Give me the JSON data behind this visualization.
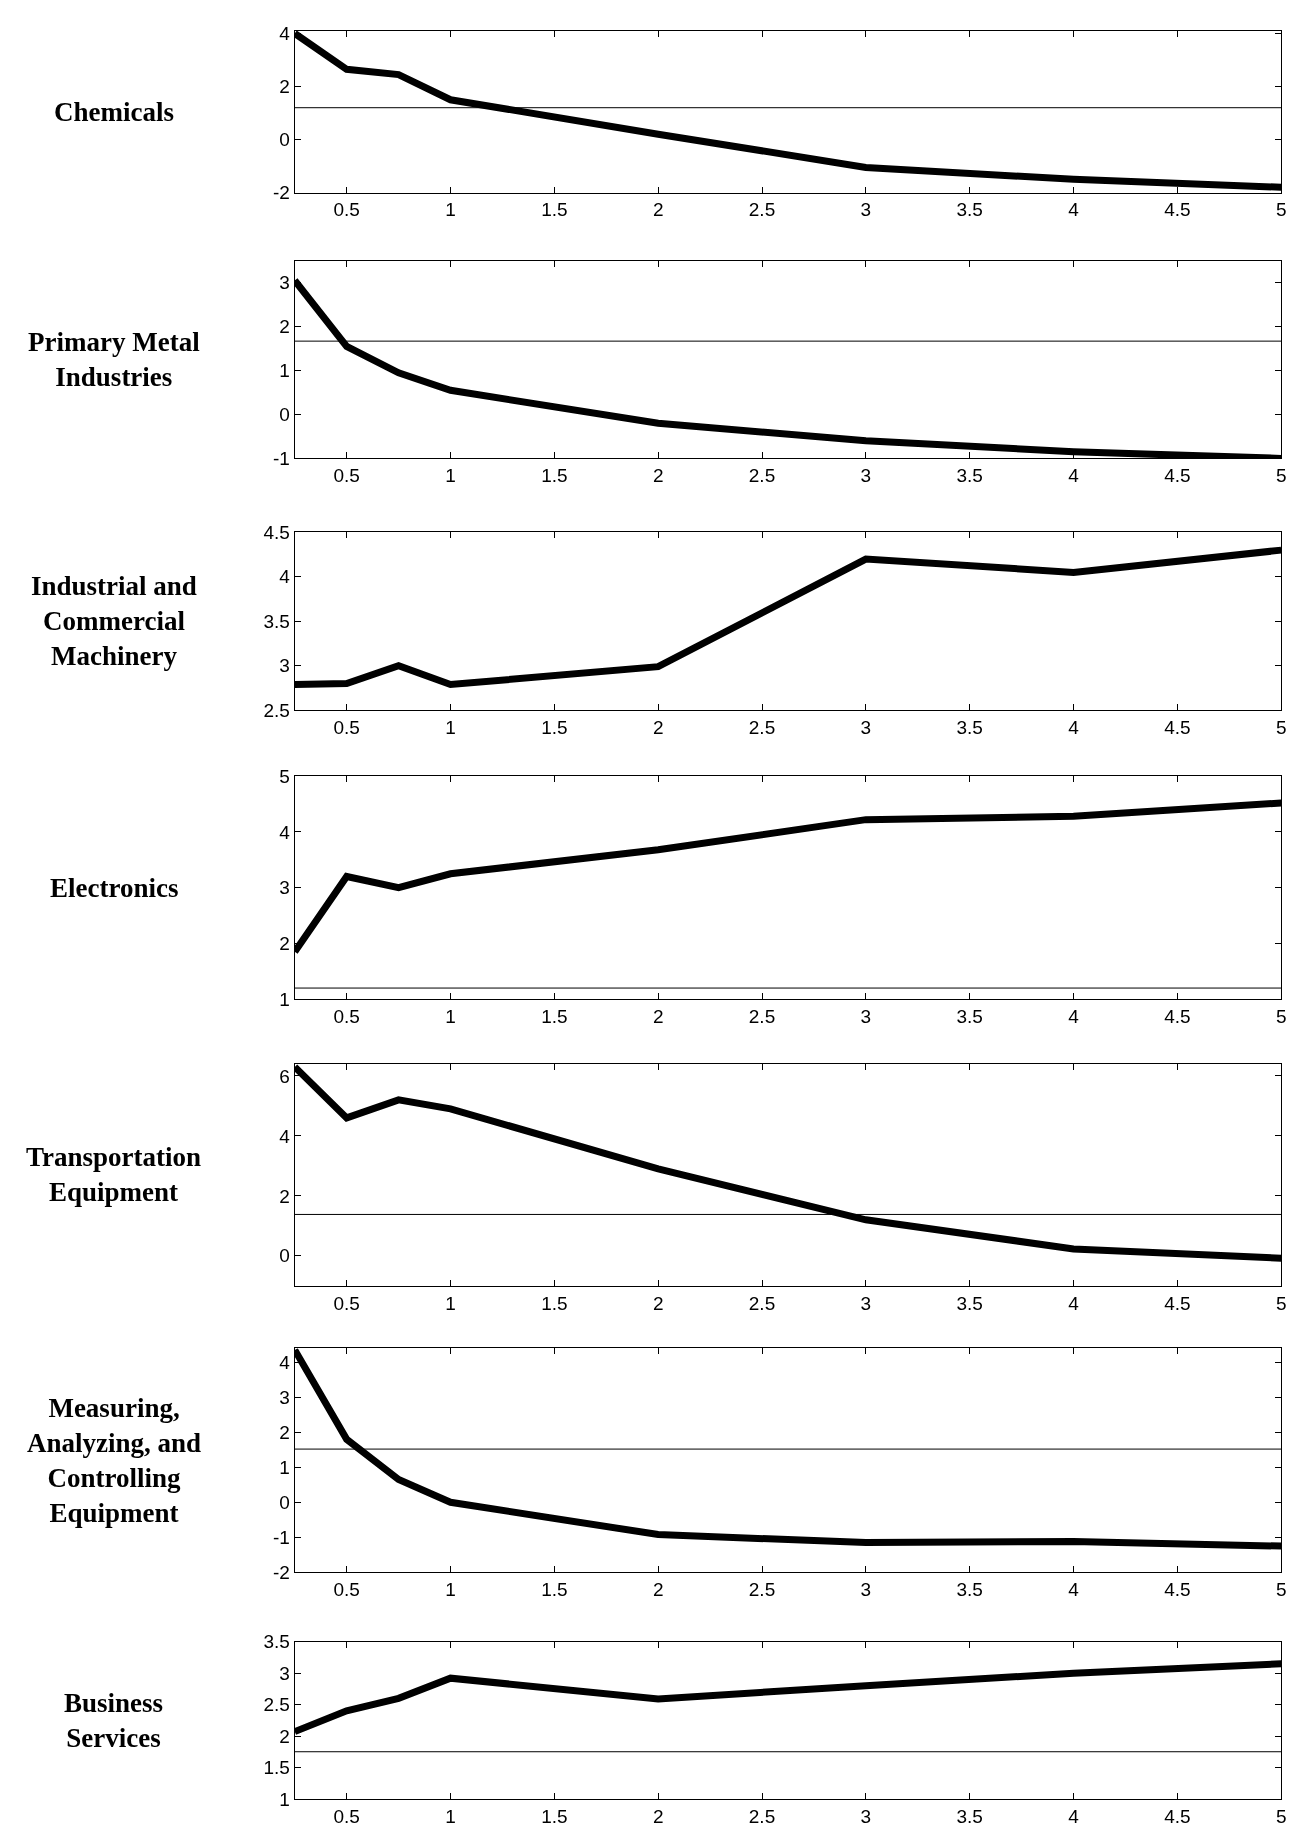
{
  "chart_data": [
    {
      "type": "line",
      "title": "Chemicals",
      "x": [
        0.25,
        0.5,
        0.75,
        1,
        2,
        3,
        4,
        5
      ],
      "series": [
        {
          "color": "#000000",
          "values": [
            4.0,
            2.65,
            2.45,
            1.5,
            0.2,
            -1.05,
            -1.5,
            -1.8
          ]
        }
      ],
      "xlim": [
        0.25,
        5
      ],
      "xticks": [
        0.5,
        1,
        1.5,
        2,
        2.5,
        3,
        3.5,
        4,
        4.5,
        5
      ],
      "ylim": [
        -2,
        4.1
      ],
      "yticks": [
        -2,
        0,
        2,
        4
      ],
      "ref_lines": [
        {
          "axis": "y",
          "value": 1.2,
          "color": "#000000"
        }
      ]
    },
    {
      "type": "line",
      "title": "Primary Metal Industries",
      "x": [
        0.25,
        0.5,
        0.75,
        1,
        2,
        3,
        4,
        5
      ],
      "series": [
        {
          "color": "#000000",
          "values": [
            3.05,
            1.55,
            0.95,
            0.55,
            -0.2,
            -0.6,
            -0.85,
            -1.0
          ]
        }
      ],
      "xlim": [
        0.25,
        5
      ],
      "xticks": [
        0.5,
        1,
        1.5,
        2,
        2.5,
        3,
        3.5,
        4,
        4.5,
        5
      ],
      "ylim": [
        -1,
        3.5
      ],
      "yticks": [
        -1,
        0,
        1,
        2,
        3
      ],
      "ref_lines": [
        {
          "axis": "y",
          "value": 1.67,
          "color": "#000000"
        }
      ]
    },
    {
      "type": "line",
      "title": "Industrial and Commercial Machinery",
      "x": [
        0.25,
        0.5,
        0.75,
        1,
        2,
        3,
        4,
        5
      ],
      "series": [
        {
          "color": "#000000",
          "values": [
            2.79,
            2.8,
            3.0,
            2.79,
            2.99,
            4.2,
            4.05,
            4.3
          ]
        }
      ],
      "xlim": [
        0.25,
        5
      ],
      "xticks": [
        0.5,
        1,
        1.5,
        2,
        2.5,
        3,
        3.5,
        4,
        4.5,
        5
      ],
      "ylim": [
        2.5,
        4.5
      ],
      "yticks": [
        2.5,
        3,
        3.5,
        4,
        4.5
      ]
    },
    {
      "type": "line",
      "title": "Electronics",
      "x": [
        0.25,
        0.5,
        0.75,
        1,
        2,
        3,
        4,
        5
      ],
      "series": [
        {
          "color": "#000000",
          "values": [
            1.85,
            3.2,
            3.0,
            3.25,
            3.68,
            4.22,
            4.28,
            4.52
          ]
        }
      ],
      "xlim": [
        0.25,
        5
      ],
      "xticks": [
        0.5,
        1,
        1.5,
        2,
        2.5,
        3,
        3.5,
        4,
        4.5,
        5
      ],
      "ylim": [
        1,
        5
      ],
      "yticks": [
        1,
        2,
        3,
        4,
        5
      ],
      "ref_lines": [
        {
          "axis": "y",
          "value": 1.2,
          "color": "#000000"
        }
      ]
    },
    {
      "type": "line",
      "title": "Transportation Equipment",
      "x": [
        0.25,
        0.5,
        0.75,
        1,
        2,
        3,
        4,
        5
      ],
      "series": [
        {
          "color": "#000000",
          "values": [
            6.3,
            4.6,
            5.2,
            4.9,
            2.9,
            1.2,
            0.23,
            -0.08
          ]
        }
      ],
      "xlim": [
        0.25,
        5
      ],
      "xticks": [
        0.5,
        1,
        1.5,
        2,
        2.5,
        3,
        3.5,
        4,
        4.5,
        5
      ],
      "ylim": [
        -1,
        6.4
      ],
      "yticks": [
        0,
        2,
        4,
        6
      ],
      "ref_lines": [
        {
          "axis": "y",
          "value": 1.38,
          "color": "#000000"
        }
      ]
    },
    {
      "type": "line",
      "title": "Measuring, Analyzing, and Controlling Equipment",
      "x": [
        0.25,
        0.5,
        0.75,
        1,
        2,
        3,
        4,
        5
      ],
      "series": [
        {
          "color": "#000000",
          "values": [
            4.35,
            1.8,
            0.65,
            0,
            -0.92,
            -1.15,
            -1.12,
            -1.25
          ]
        }
      ],
      "xlim": [
        0.25,
        5
      ],
      "xticks": [
        0.5,
        1,
        1.5,
        2,
        2.5,
        3,
        3.5,
        4,
        4.5,
        5
      ],
      "ylim": [
        -2,
        4.4
      ],
      "yticks": [
        -2,
        -1,
        0,
        1,
        2,
        3,
        4
      ],
      "ref_lines": [
        {
          "axis": "y",
          "value": 1.52,
          "color": "#000000"
        }
      ]
    },
    {
      "type": "line",
      "title": "Business Services",
      "x": [
        0.25,
        0.5,
        0.75,
        1,
        2,
        3,
        4,
        5
      ],
      "series": [
        {
          "color": "#000000",
          "values": [
            2.07,
            2.4,
            2.6,
            2.92,
            2.59,
            2.8,
            3.0,
            3.15
          ]
        }
      ],
      "xlim": [
        0.25,
        5
      ],
      "xticks": [
        0.5,
        1,
        1.5,
        2,
        2.5,
        3,
        3.5,
        4,
        4.5,
        5
      ],
      "ylim": [
        1,
        3.5
      ],
      "yticks": [
        1,
        1.5,
        2,
        2.5,
        3,
        3.5
      ],
      "ref_lines": [
        {
          "axis": "y",
          "value": 1.75,
          "color": "#000000"
        }
      ]
    }
  ]
}
